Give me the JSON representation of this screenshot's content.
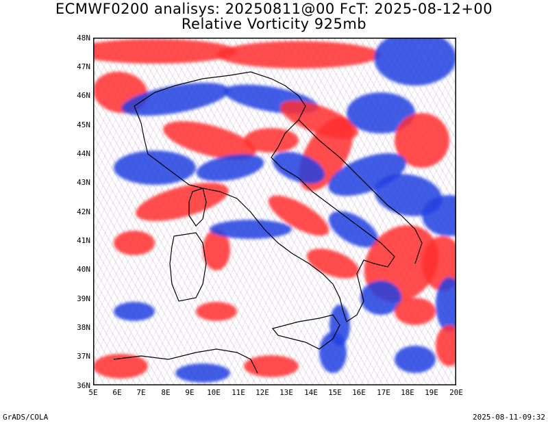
{
  "title": {
    "line1": "ECMWF0200 analisys: 20250811@00 FcT: 2025-08-12+00",
    "line2": "Relative Vorticity 925mb"
  },
  "map": {
    "field": "relative-vorticity",
    "positive_color": "#ff3030",
    "negative_color": "#2040e0",
    "coastline_color": "#000000",
    "lat_labels": [
      "48N",
      "47N",
      "46N",
      "45N",
      "44N",
      "43N",
      "42N",
      "41N",
      "40N",
      "39N",
      "38N",
      "37N",
      "36N"
    ],
    "lon_labels": [
      "5E",
      "6E",
      "7E",
      "8E",
      "9E",
      "10E",
      "11E",
      "12E",
      "13E",
      "14E",
      "15E",
      "16E",
      "17E",
      "18E",
      "19E",
      "20E"
    ]
  },
  "footer": {
    "left": "GrADS/COLA",
    "right": "2025-08-11-09:32"
  }
}
